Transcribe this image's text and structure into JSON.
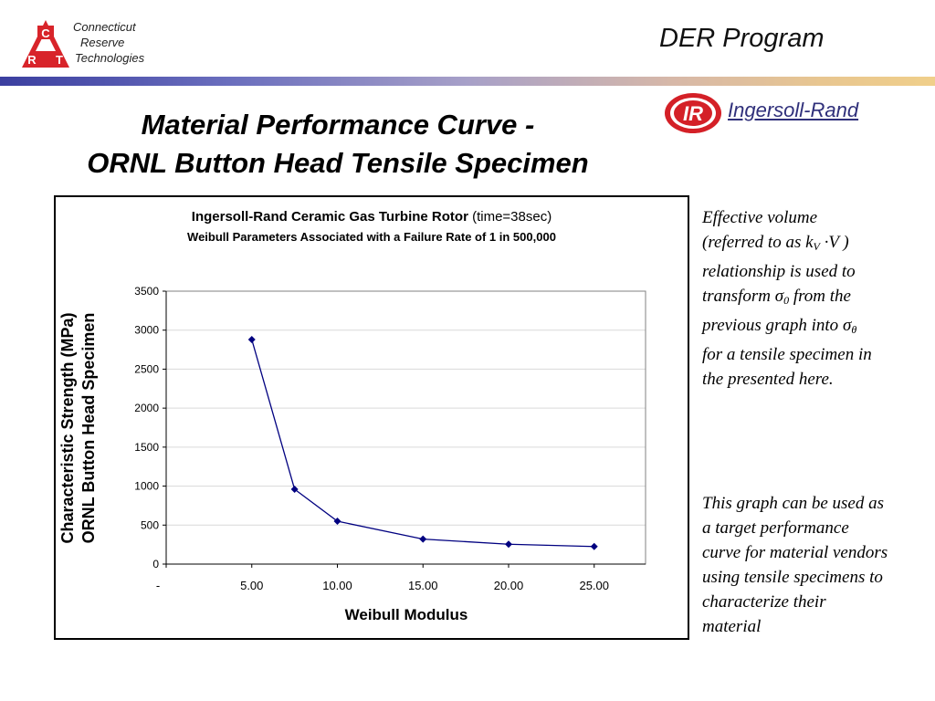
{
  "header": {
    "logo": {
      "letters": [
        "C",
        "R",
        "T"
      ],
      "lines": [
        "Connecticut",
        "Reserve",
        "Technologies"
      ]
    },
    "program_title": "DER Program",
    "partner": {
      "logo_text": "IR",
      "name": "Ingersoll-Rand"
    }
  },
  "slide": {
    "title_line1": "Material Performance Curve -",
    "title_line2": "ORNL Button Head Tensile Specimen"
  },
  "chart_data": {
    "type": "line",
    "title_bold": "Ingersoll-Rand Ceramic Gas Turbine Rotor",
    "title_normal": " (time=38sec)",
    "subtitle": "Weibull Parameters Associated with a Failure Rate of 1 in 500,000",
    "xlabel": "Weibull Modulus",
    "ylabel_line1": "Characteristic Strength (MPa)",
    "ylabel_line2": "ORNL Button Head Specimen",
    "xlim": [
      0,
      28
    ],
    "ylim": [
      0,
      3500
    ],
    "x_ticks": [
      {
        "value": 0,
        "label": "-"
      },
      {
        "value": 5,
        "label": "5.00"
      },
      {
        "value": 10,
        "label": "10.00"
      },
      {
        "value": 15,
        "label": "15.00"
      },
      {
        "value": 20,
        "label": "20.00"
      },
      {
        "value": 25,
        "label": "25.00"
      }
    ],
    "y_ticks": [
      0,
      500,
      1000,
      1500,
      2000,
      2500,
      3000,
      3500
    ],
    "grid": "horizontal",
    "series": [
      {
        "points": [
          {
            "x": 5,
            "y": 2880
          },
          {
            "x": 7.5,
            "y": 960
          },
          {
            "x": 10,
            "y": 550
          },
          {
            "x": 15,
            "y": 320
          },
          {
            "x": 20,
            "y": 255
          },
          {
            "x": 25,
            "y": 225
          }
        ],
        "color": "#000080"
      }
    ],
    "plot_background": "#ffffff"
  },
  "notes": {
    "note1": {
      "line1": "Effective volume",
      "line2_pre": "(referred to as ",
      "k": "k",
      "k_sub": "V",
      "line2_post": " ·V )",
      "line3": "relationship is used to",
      "line4_pre": "transform ",
      "sigma": "σ",
      "sigma0_sub": "0",
      "line4_post": "  from the",
      "line5_pre": "previous graph into ",
      "sigma_theta_sub": "θ",
      "line6": "for a tensile specimen in",
      "line7": "the presented here."
    },
    "note2": {
      "lines": [
        "This graph can be used as",
        "a target performance",
        "curve for material vendors",
        "using tensile specimens to",
        "characterize their",
        "material"
      ]
    }
  },
  "colors": {
    "series": "#000080",
    "logo_red": "#d8242a",
    "ir_red": "#d42027",
    "partner_text": "#2f2f7a"
  }
}
